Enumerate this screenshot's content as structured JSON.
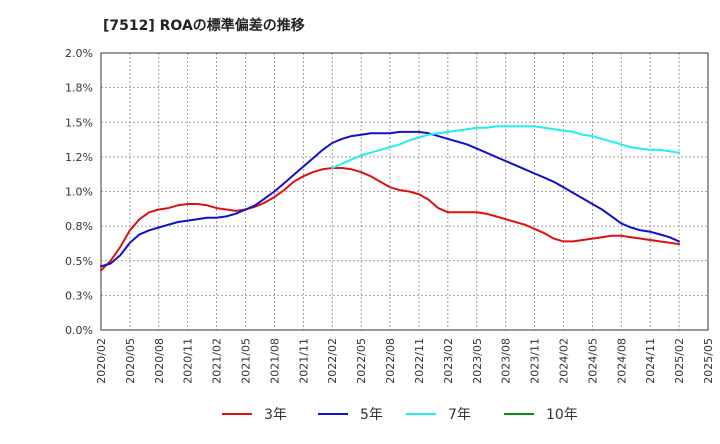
{
  "chart_data": {
    "type": "line",
    "title": "[7512]  ROAの標準偏差の推移",
    "xlabel": "",
    "ylabel": "",
    "ylim": [
      0,
      2.0
    ],
    "y_ticks": [
      "0.0%",
      "0.3%",
      "0.5%",
      "0.8%",
      "1.0%",
      "1.2%",
      "1.5%",
      "1.8%",
      "2.0%"
    ],
    "y_tick_values": [
      0,
      0.25,
      0.5,
      0.75,
      1.0,
      1.25,
      1.5,
      1.75,
      2.0
    ],
    "x_ticks": [
      "2020/02",
      "2020/05",
      "2020/08",
      "2020/11",
      "2021/02",
      "2021/05",
      "2021/08",
      "2021/11",
      "2022/02",
      "2022/05",
      "2022/08",
      "2022/11",
      "2023/02",
      "2023/05",
      "2023/08",
      "2023/11",
      "2024/02",
      "2024/05",
      "2024/08",
      "2024/11",
      "2025/02",
      "2025/05"
    ],
    "grid": true,
    "legend_position": "bottom",
    "series": [
      {
        "name": "3年",
        "color": "#dd1111",
        "x": [
          "2020/02",
          "2020/03",
          "2020/04",
          "2020/05",
          "2020/06",
          "2020/07",
          "2020/08",
          "2020/09",
          "2020/10",
          "2020/11",
          "2020/12",
          "2021/01",
          "2021/02",
          "2021/03",
          "2021/04",
          "2021/05",
          "2021/06",
          "2021/07",
          "2021/08",
          "2021/09",
          "2021/10",
          "2021/11",
          "2021/12",
          "2022/01",
          "2022/02",
          "2022/03",
          "2022/04",
          "2022/05",
          "2022/06",
          "2022/07",
          "2022/08",
          "2022/09",
          "2022/10",
          "2022/11",
          "2022/12",
          "2023/01",
          "2023/02",
          "2023/03",
          "2023/04",
          "2023/05",
          "2023/06",
          "2023/07",
          "2023/08",
          "2023/09",
          "2023/10",
          "2023/11",
          "2023/12",
          "2024/01",
          "2024/02",
          "2024/03",
          "2024/04",
          "2024/05",
          "2024/06",
          "2024/07",
          "2024/08",
          "2024/09",
          "2024/10",
          "2024/11",
          "2024/12",
          "2025/01",
          "2025/02"
        ],
        "values": [
          0.43,
          0.5,
          0.6,
          0.72,
          0.8,
          0.85,
          0.87,
          0.88,
          0.9,
          0.91,
          0.91,
          0.9,
          0.88,
          0.87,
          0.86,
          0.87,
          0.89,
          0.92,
          0.96,
          1.01,
          1.07,
          1.11,
          1.14,
          1.16,
          1.17,
          1.17,
          1.16,
          1.14,
          1.11,
          1.07,
          1.03,
          1.01,
          1.0,
          0.98,
          0.94,
          0.88,
          0.85,
          0.85,
          0.85,
          0.85,
          0.84,
          0.82,
          0.8,
          0.78,
          0.76,
          0.73,
          0.7,
          0.66,
          0.64,
          0.64,
          0.65,
          0.66,
          0.67,
          0.68,
          0.68,
          0.67,
          0.66,
          0.65,
          0.64,
          0.63,
          0.62
        ]
      },
      {
        "name": "5年",
        "color": "#1111cc",
        "x": [
          "2020/02",
          "2020/03",
          "2020/04",
          "2020/05",
          "2020/06",
          "2020/07",
          "2020/08",
          "2020/09",
          "2020/10",
          "2020/11",
          "2020/12",
          "2021/01",
          "2021/02",
          "2021/03",
          "2021/04",
          "2021/05",
          "2021/06",
          "2021/07",
          "2021/08",
          "2021/09",
          "2021/10",
          "2021/11",
          "2021/12",
          "2022/01",
          "2022/02",
          "2022/03",
          "2022/04",
          "2022/05",
          "2022/06",
          "2022/07",
          "2022/08",
          "2022/09",
          "2022/10",
          "2022/11",
          "2022/12",
          "2023/01",
          "2023/02",
          "2023/03",
          "2023/04",
          "2023/05",
          "2023/06",
          "2023/07",
          "2023/08",
          "2023/09",
          "2023/10",
          "2023/11",
          "2023/12",
          "2024/01",
          "2024/02",
          "2024/03",
          "2024/04",
          "2024/05",
          "2024/06",
          "2024/07",
          "2024/08",
          "2024/09",
          "2024/10",
          "2024/11",
          "2024/12",
          "2025/01",
          "2025/02"
        ],
        "values": [
          0.46,
          0.48,
          0.54,
          0.63,
          0.69,
          0.72,
          0.74,
          0.76,
          0.78,
          0.79,
          0.8,
          0.81,
          0.81,
          0.82,
          0.84,
          0.87,
          0.9,
          0.95,
          1.0,
          1.06,
          1.12,
          1.18,
          1.24,
          1.3,
          1.35,
          1.38,
          1.4,
          1.41,
          1.42,
          1.42,
          1.42,
          1.43,
          1.43,
          1.43,
          1.42,
          1.4,
          1.38,
          1.36,
          1.34,
          1.31,
          1.28,
          1.25,
          1.22,
          1.19,
          1.16,
          1.13,
          1.1,
          1.07,
          1.03,
          0.99,
          0.95,
          0.91,
          0.87,
          0.82,
          0.77,
          0.74,
          0.72,
          0.71,
          0.69,
          0.67,
          0.64
        ]
      },
      {
        "name": "7年",
        "color": "#22eeee",
        "x": [
          "2022/02",
          "2022/03",
          "2022/04",
          "2022/05",
          "2022/06",
          "2022/07",
          "2022/08",
          "2022/09",
          "2022/10",
          "2022/11",
          "2022/12",
          "2023/01",
          "2023/02",
          "2023/03",
          "2023/04",
          "2023/05",
          "2023/06",
          "2023/07",
          "2023/08",
          "2023/09",
          "2023/10",
          "2023/11",
          "2023/12",
          "2024/01",
          "2024/02",
          "2024/03",
          "2024/04",
          "2024/05",
          "2024/06",
          "2024/07",
          "2024/08",
          "2024/09",
          "2024/10",
          "2024/11",
          "2024/12",
          "2025/01",
          "2025/02"
        ],
        "values": [
          1.17,
          1.2,
          1.23,
          1.26,
          1.28,
          1.3,
          1.32,
          1.34,
          1.37,
          1.39,
          1.41,
          1.42,
          1.43,
          1.44,
          1.45,
          1.46,
          1.46,
          1.47,
          1.47,
          1.47,
          1.47,
          1.47,
          1.46,
          1.45,
          1.44,
          1.43,
          1.41,
          1.4,
          1.38,
          1.36,
          1.34,
          1.32,
          1.31,
          1.3,
          1.3,
          1.29,
          1.28
        ]
      },
      {
        "name": "10年",
        "color": "#118811",
        "x": [],
        "values": []
      }
    ]
  }
}
